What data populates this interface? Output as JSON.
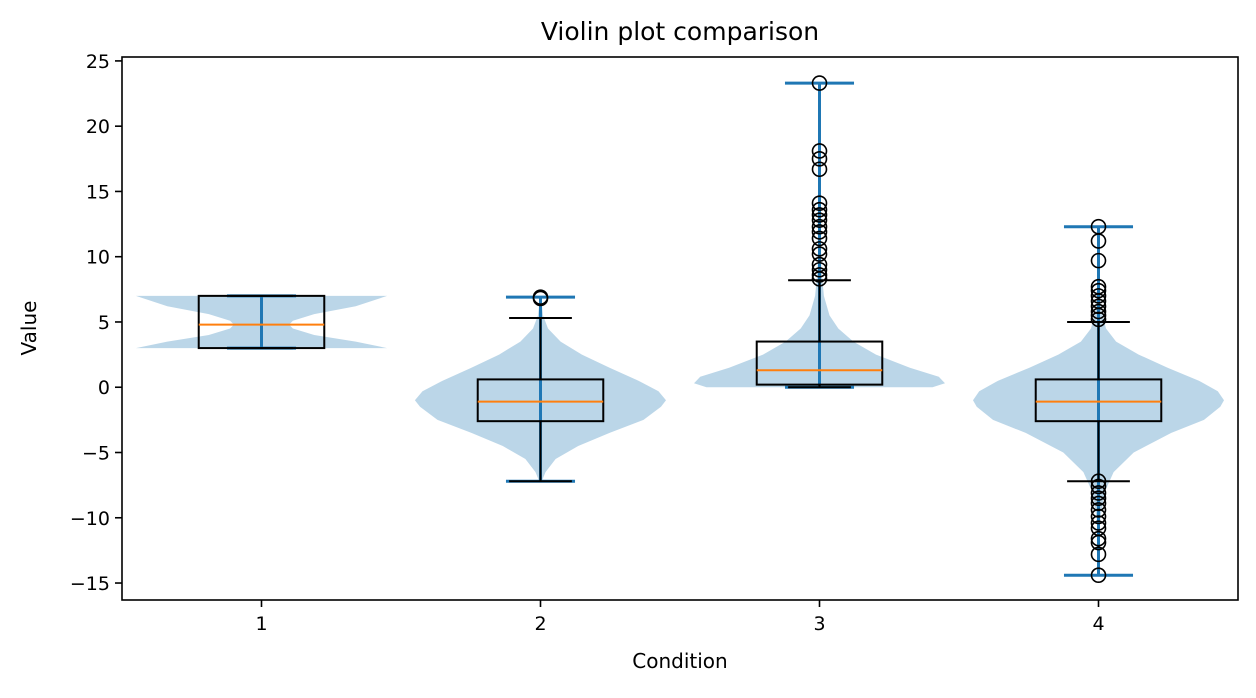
{
  "chart_data": {
    "type": "violin",
    "title": "Violin plot comparison",
    "xlabel": "Condition",
    "ylabel": "Value",
    "categories": [
      "1",
      "2",
      "3",
      "4"
    ],
    "ylim": [
      -16.3,
      25.3
    ],
    "xlim": [
      0.5,
      4.5
    ],
    "yticks": [
      -15,
      -10,
      -5,
      0,
      5,
      10,
      15,
      20,
      25
    ],
    "ytick_labels": [
      "−15",
      "−10",
      "−5",
      "0",
      "5",
      "10",
      "15",
      "20",
      "25"
    ],
    "grid": false,
    "colors": {
      "violin_fill": "#1f77b4",
      "violin_lines": "#1f77b4",
      "median": "#ff7f0e",
      "box": "#000000"
    },
    "series": [
      {
        "category": "1",
        "min": 3.0,
        "max": 7.0,
        "q1": 3.0,
        "median": 4.8,
        "q3": 7.0,
        "whisker_low": 3.0,
        "whisker_high": 7.0,
        "outliers": [],
        "density": [
          [
            3.0,
            1.0
          ],
          [
            3.5,
            0.75
          ],
          [
            4.0,
            0.42
          ],
          [
            4.5,
            0.25
          ],
          [
            4.8,
            0.22
          ],
          [
            5.1,
            0.25
          ],
          [
            5.6,
            0.42
          ],
          [
            6.2,
            0.75
          ],
          [
            7.0,
            1.0
          ]
        ]
      },
      {
        "category": "2",
        "min": -7.2,
        "max": 6.9,
        "q1": -2.6,
        "median": -1.1,
        "q3": 0.6,
        "whisker_low": -7.2,
        "whisker_high": 5.3,
        "outliers": [
          6.8,
          6.9
        ],
        "density": [
          [
            -7.2,
            0.01
          ],
          [
            -6.5,
            0.04
          ],
          [
            -5.5,
            0.12
          ],
          [
            -4.5,
            0.3
          ],
          [
            -3.5,
            0.55
          ],
          [
            -2.5,
            0.82
          ],
          [
            -1.5,
            0.96
          ],
          [
            -1.0,
            1.0
          ],
          [
            -0.3,
            0.94
          ],
          [
            0.5,
            0.78
          ],
          [
            1.5,
            0.55
          ],
          [
            2.5,
            0.33
          ],
          [
            3.5,
            0.16
          ],
          [
            4.5,
            0.06
          ],
          [
            5.5,
            0.02
          ],
          [
            6.9,
            0.005
          ]
        ]
      },
      {
        "category": "3",
        "min": 0.0,
        "max": 23.3,
        "q1": 0.2,
        "median": 1.3,
        "q3": 3.5,
        "whisker_low": 0.0,
        "whisker_high": 8.2,
        "outliers": [
          8.3,
          8.6,
          9.0,
          9.4,
          10.2,
          10.6,
          11.4,
          11.9,
          12.3,
          12.8,
          13.2,
          13.6,
          14.1,
          16.7,
          17.5,
          18.1,
          23.3
        ],
        "density": [
          [
            0.0,
            0.9
          ],
          [
            0.3,
            1.0
          ],
          [
            0.8,
            0.95
          ],
          [
            1.5,
            0.72
          ],
          [
            2.5,
            0.45
          ],
          [
            3.5,
            0.27
          ],
          [
            4.5,
            0.15
          ],
          [
            5.5,
            0.08
          ],
          [
            7.0,
            0.035
          ],
          [
            9.0,
            0.015
          ],
          [
            12.0,
            0.007
          ],
          [
            16.0,
            0.003
          ],
          [
            23.3,
            0.001
          ]
        ]
      },
      {
        "category": "4",
        "min": -14.4,
        "max": 12.3,
        "q1": -2.6,
        "median": -1.1,
        "q3": 0.6,
        "whisker_low": -7.2,
        "whisker_high": 5.0,
        "outliers": [
          5.2,
          5.5,
          5.8,
          6.2,
          6.6,
          7.0,
          7.4,
          7.7,
          9.7,
          11.2,
          12.3,
          -7.2,
          -7.6,
          -8.1,
          -8.5,
          -8.9,
          -9.4,
          -9.9,
          -10.4,
          -10.8,
          -11.6,
          -11.9,
          -12.8,
          -14.4
        ],
        "density": [
          [
            -14.4,
            0.001
          ],
          [
            -12.0,
            0.005
          ],
          [
            -10.0,
            0.015
          ],
          [
            -8.0,
            0.05
          ],
          [
            -6.5,
            0.12
          ],
          [
            -5.0,
            0.28
          ],
          [
            -3.5,
            0.58
          ],
          [
            -2.5,
            0.84
          ],
          [
            -1.5,
            0.97
          ],
          [
            -1.0,
            1.0
          ],
          [
            -0.3,
            0.95
          ],
          [
            0.5,
            0.8
          ],
          [
            1.5,
            0.55
          ],
          [
            2.5,
            0.32
          ],
          [
            3.5,
            0.14
          ],
          [
            4.5,
            0.06
          ],
          [
            6.0,
            0.02
          ],
          [
            8.0,
            0.006
          ],
          [
            10.0,
            0.002
          ],
          [
            12.3,
            0.001
          ]
        ]
      }
    ]
  }
}
